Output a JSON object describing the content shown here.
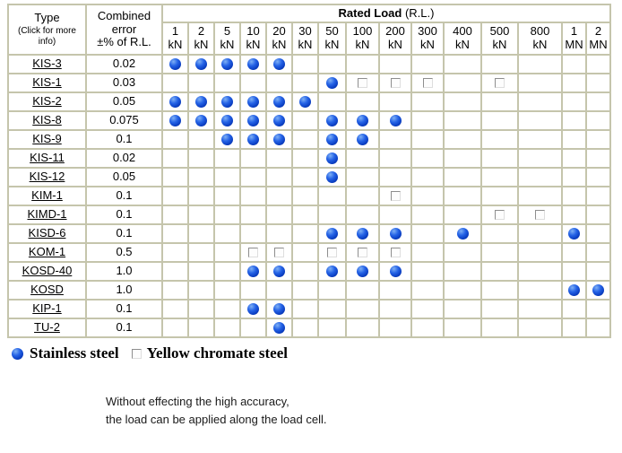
{
  "table": {
    "header": {
      "type_title": "Type",
      "type_subtitle": "(Click for more info)",
      "error_lines": [
        "Combined",
        "error",
        "±% of R.L."
      ],
      "rated_load_title": "Rated Load",
      "rated_load_suffix": " (R.L.)"
    },
    "columns": [
      {
        "value": "1",
        "unit": "kN"
      },
      {
        "value": "2",
        "unit": "kN"
      },
      {
        "value": "5",
        "unit": "kN"
      },
      {
        "value": "10",
        "unit": "kN"
      },
      {
        "value": "20",
        "unit": "kN"
      },
      {
        "value": "30",
        "unit": "kN"
      },
      {
        "value": "50",
        "unit": "kN"
      },
      {
        "value": "100",
        "unit": "kN"
      },
      {
        "value": "200",
        "unit": "kN"
      },
      {
        "value": "300",
        "unit": "kN"
      },
      {
        "value": "400",
        "unit": "kN"
      },
      {
        "value": "500",
        "unit": "kN"
      },
      {
        "value": "800",
        "unit": "kN"
      },
      {
        "value": "1",
        "unit": "MN"
      },
      {
        "value": "2",
        "unit": "MN"
      }
    ],
    "marker_codes": {
      "B": "stainless steel",
      "S": "yellow chromate steel",
      "": "not available"
    },
    "rows": [
      {
        "type": "KIS-3",
        "error": "0.02",
        "cells": [
          "B",
          "B",
          "B",
          "B",
          "B",
          "",
          "",
          "",
          "",
          "",
          "",
          "",
          "",
          "",
          ""
        ]
      },
      {
        "type": "KIS-1",
        "error": "0.03",
        "cells": [
          "",
          "",
          "",
          "",
          "",
          "",
          "B",
          "S",
          "S",
          "S",
          "",
          "S",
          "",
          "",
          ""
        ]
      },
      {
        "type": "KIS-2",
        "error": "0.05",
        "cells": [
          "B",
          "B",
          "B",
          "B",
          "B",
          "B",
          "",
          "",
          "",
          "",
          "",
          "",
          "",
          "",
          ""
        ]
      },
      {
        "type": "KIS-8",
        "error": "0.075",
        "cells": [
          "B",
          "B",
          "B",
          "B",
          "B",
          "",
          "B",
          "B",
          "B",
          "",
          "",
          "",
          "",
          "",
          ""
        ]
      },
      {
        "type": "KIS-9",
        "error": "0.1",
        "cells": [
          "",
          "",
          "B",
          "B",
          "B",
          "",
          "B",
          "B",
          "",
          "",
          "",
          "",
          "",
          "",
          ""
        ]
      },
      {
        "type": "KIS-11",
        "error": "0.02",
        "cells": [
          "",
          "",
          "",
          "",
          "",
          "",
          "B",
          "",
          "",
          "",
          "",
          "",
          "",
          "",
          ""
        ]
      },
      {
        "type": "KIS-12",
        "error": "0.05",
        "cells": [
          "",
          "",
          "",
          "",
          "",
          "",
          "B",
          "",
          "",
          "",
          "",
          "",
          "",
          "",
          ""
        ]
      },
      {
        "type": "KIM-1",
        "error": "0.1",
        "cells": [
          "",
          "",
          "",
          "",
          "",
          "",
          "",
          "",
          "S",
          "",
          "",
          "",
          "",
          "",
          ""
        ]
      },
      {
        "type": "KIMD-1",
        "error": "0.1",
        "cells": [
          "",
          "",
          "",
          "",
          "",
          "",
          "",
          "",
          "",
          "",
          "",
          "S",
          "S",
          "",
          ""
        ]
      },
      {
        "type": "KISD-6",
        "error": "0.1",
        "cells": [
          "",
          "",
          "",
          "",
          "",
          "",
          "B",
          "B",
          "B",
          "",
          "B",
          "",
          "",
          "B",
          ""
        ]
      },
      {
        "type": "KOM-1",
        "error": "0.5",
        "cells": [
          "",
          "",
          "",
          "S",
          "S",
          "",
          "S",
          "S",
          "S",
          "",
          "",
          "",
          "",
          "",
          ""
        ]
      },
      {
        "type": "KOSD-40",
        "error": "1.0",
        "cells": [
          "",
          "",
          "",
          "B",
          "B",
          "",
          "B",
          "B",
          "B",
          "",
          "",
          "",
          "",
          "",
          ""
        ]
      },
      {
        "type": "KOSD",
        "error": "1.0",
        "cells": [
          "",
          "",
          "",
          "",
          "",
          "",
          "",
          "",
          "",
          "",
          "",
          "",
          "",
          "B",
          "B"
        ]
      },
      {
        "type": "KIP-1",
        "error": "0.1",
        "cells": [
          "",
          "",
          "",
          "B",
          "B",
          "",
          "",
          "",
          "",
          "",
          "",
          "",
          "",
          "",
          ""
        ]
      },
      {
        "type": "TU-2",
        "error": "0.1",
        "cells": [
          "",
          "",
          "",
          "",
          "B",
          "",
          "",
          "",
          "",
          "",
          "",
          "",
          "",
          "",
          ""
        ]
      }
    ]
  },
  "legend": {
    "stainless": "Stainless steel",
    "yellow_chromate": "Yellow chromate steel"
  },
  "note": {
    "line1": "Without effecting the high accuracy,",
    "line2": "the load can be applied along the load cell."
  },
  "colors": {
    "grid": "#c5c5ac",
    "ball_hi": "#7fb0f4",
    "ball_mid": "#2563e6",
    "ball_dark": "#0a3ec2",
    "ball_edge": "#04227e",
    "square_border": "#8e8e8e"
  }
}
